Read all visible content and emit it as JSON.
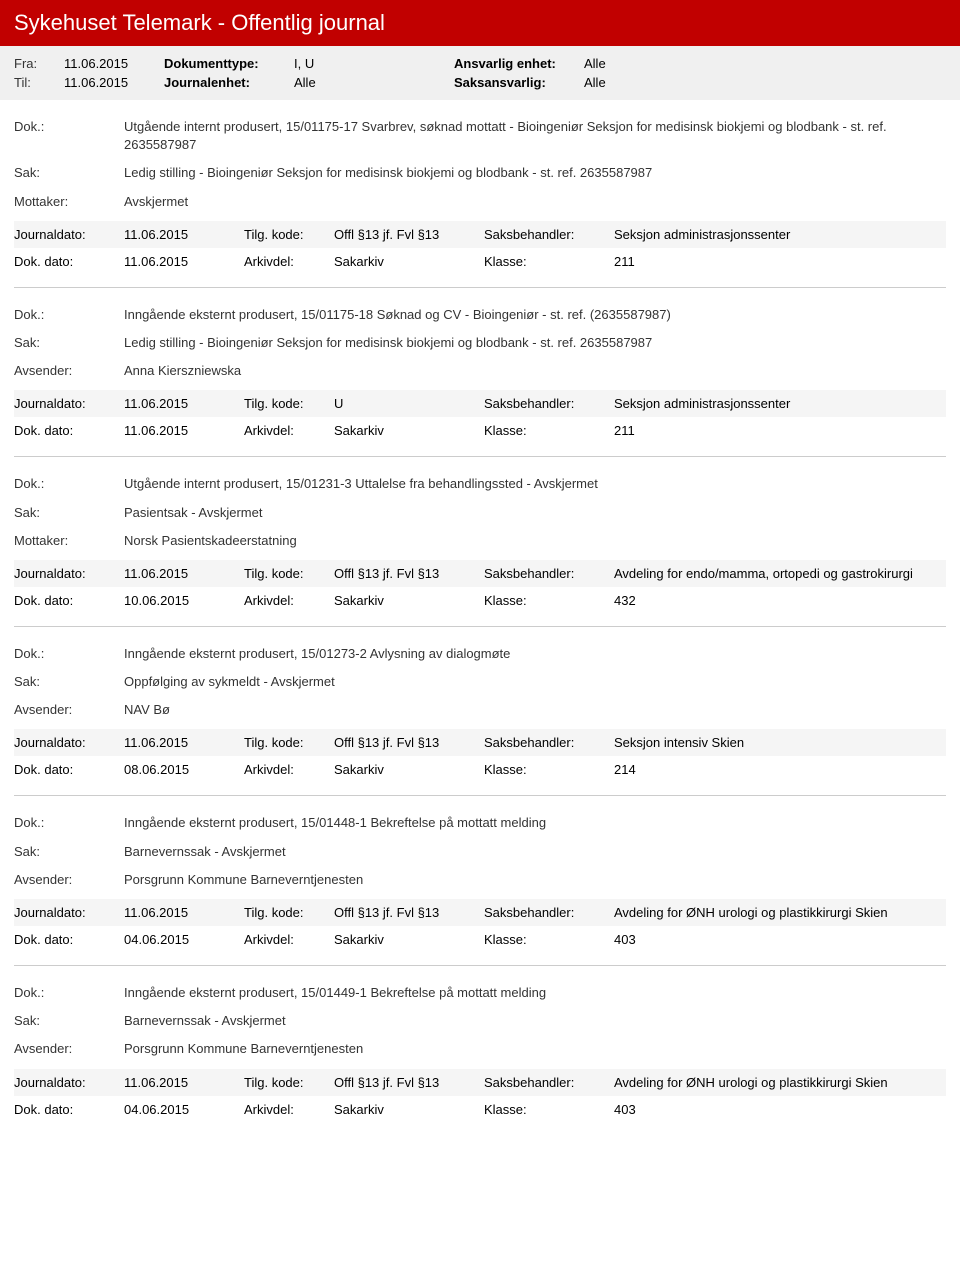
{
  "header": {
    "title": "Sykehuset Telemark - Offentlig journal"
  },
  "meta": {
    "fra_label": "Fra:",
    "fra_value": "11.06.2015",
    "til_label": "Til:",
    "til_value": "11.06.2015",
    "doktype_label": "Dokumenttype:",
    "doktype_value": "I, U",
    "journal_label": "Journalenhet:",
    "journal_value": "Alle",
    "ansvarlig_label": "Ansvarlig enhet:",
    "ansvarlig_value": "Alle",
    "saks_label": "Saksansvarlig:",
    "saks_value": "Alle"
  },
  "labels": {
    "dok": "Dok.:",
    "sak": "Sak:",
    "mottaker": "Mottaker:",
    "avsender": "Avsender:",
    "journaldato": "Journaldato:",
    "dokdato": "Dok. dato:",
    "tilgkode": "Tilg. kode:",
    "arkivdel": "Arkivdel:",
    "saksbehandler": "Saksbehandler:",
    "klasse": "Klasse:"
  },
  "entries": [
    {
      "dok": "Utgående internt produsert, 15/01175-17 Svarbrev, søknad mottatt - Bioingeniør Seksjon for medisinsk biokjemi og blodbank - st. ref. 2635587987",
      "sak": "Ledig stilling - Bioingeniør Seksjon for medisinsk biokjemi og blodbank - st. ref. 2635587987",
      "party_label": "Mottaker:",
      "party": "Avskjermet",
      "journaldato": "11.06.2015",
      "tilgkode": "Offl §13 jf. Fvl §13",
      "saksbehandler": "Seksjon administrasjonssenter",
      "dokdato": "11.06.2015",
      "arkivdel": "Sakarkiv",
      "klasse": "211"
    },
    {
      "dok": "Inngående eksternt produsert, 15/01175-18 Søknad og CV - Bioingeniør - st. ref. (2635587987)",
      "sak": "Ledig stilling - Bioingeniør Seksjon for medisinsk biokjemi og blodbank - st. ref. 2635587987",
      "party_label": "Avsender:",
      "party": "Anna Kierszniewska",
      "journaldato": "11.06.2015",
      "tilgkode": "U",
      "saksbehandler": "Seksjon administrasjonssenter",
      "dokdato": "11.06.2015",
      "arkivdel": "Sakarkiv",
      "klasse": "211"
    },
    {
      "dok": "Utgående internt produsert, 15/01231-3 Uttalelse fra behandlingssted - Avskjermet",
      "sak": "Pasientsak - Avskjermet",
      "party_label": "Mottaker:",
      "party": "Norsk Pasientskadeerstatning",
      "journaldato": "11.06.2015",
      "tilgkode": "Offl §13 jf. Fvl §13",
      "saksbehandler": "Avdeling for endo/mamma, ortopedi og gastrokirurgi",
      "dokdato": "10.06.2015",
      "arkivdel": "Sakarkiv",
      "klasse": "432"
    },
    {
      "dok": "Inngående eksternt produsert, 15/01273-2 Avlysning av dialogmøte",
      "sak": "Oppfølging av sykmeldt - Avskjermet",
      "party_label": "Avsender:",
      "party": "NAV Bø",
      "journaldato": "11.06.2015",
      "tilgkode": "Offl §13 jf. Fvl §13",
      "saksbehandler": "Seksjon intensiv Skien",
      "dokdato": "08.06.2015",
      "arkivdel": "Sakarkiv",
      "klasse": "214"
    },
    {
      "dok": "Inngående eksternt produsert, 15/01448-1 Bekreftelse på mottatt melding",
      "sak": "Barnevernssak - Avskjermet",
      "party_label": "Avsender:",
      "party": "Porsgrunn Kommune Barneverntjenesten",
      "journaldato": "11.06.2015",
      "tilgkode": "Offl §13 jf. Fvl §13",
      "saksbehandler": "Avdeling for ØNH urologi og plastikkirurgi Skien",
      "dokdato": "04.06.2015",
      "arkivdel": "Sakarkiv",
      "klasse": "403"
    },
    {
      "dok": "Inngående eksternt produsert, 15/01449-1 Bekreftelse på mottatt melding",
      "sak": "Barnevernssak - Avskjermet",
      "party_label": "Avsender:",
      "party": "Porsgrunn Kommune Barneverntjenesten",
      "journaldato": "11.06.2015",
      "tilgkode": "Offl §13 jf. Fvl §13",
      "saksbehandler": "Avdeling for ØNH urologi og plastikkirurgi Skien",
      "dokdato": "04.06.2015",
      "arkivdel": "Sakarkiv",
      "klasse": "403"
    }
  ]
}
